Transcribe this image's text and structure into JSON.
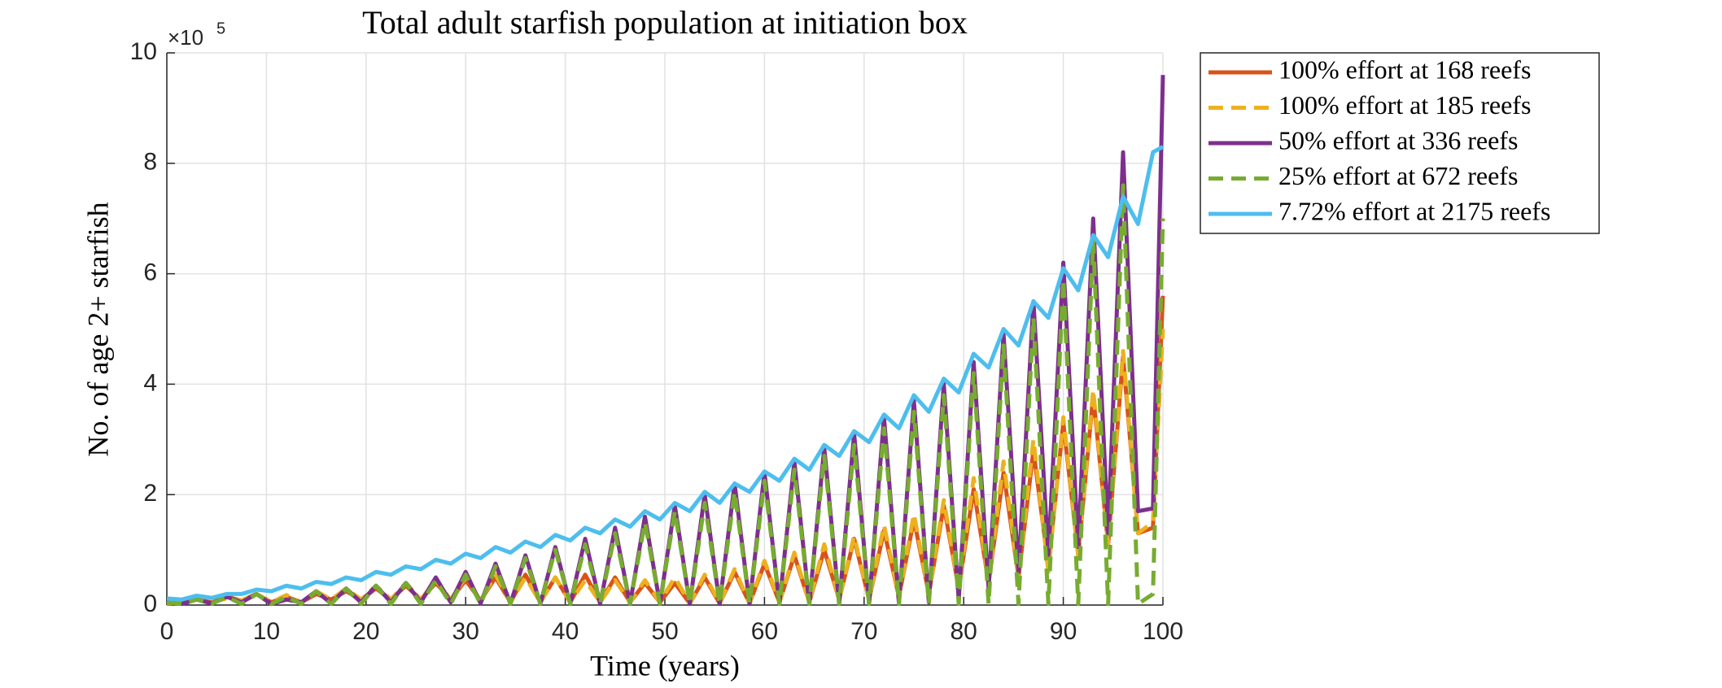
{
  "chart_data": {
    "type": "line",
    "title": "Total adult starfish population at initiation box",
    "x_label": "Time (years)",
    "y_label": "No. of age 2+ starfish",
    "y_scale_base": "×10",
    "y_scale_exponent": "5",
    "x": [
      0,
      1.5,
      3,
      4.5,
      6,
      7.5,
      9,
      10.5,
      12,
      13.5,
      15,
      16.5,
      18,
      19.5,
      21,
      22.5,
      24,
      25.5,
      27,
      28.5,
      30,
      31.5,
      33,
      34.5,
      36,
      37.5,
      39,
      40.5,
      42,
      43.5,
      45,
      46.5,
      48,
      49.5,
      51,
      52.5,
      54,
      55.5,
      57,
      58.5,
      60,
      61.5,
      63,
      64.5,
      66,
      67.5,
      69,
      70.5,
      72,
      73.5,
      75,
      76.5,
      78,
      79.5,
      81,
      82.5,
      84,
      85.5,
      87,
      88.5,
      90,
      91.5,
      93,
      94.5,
      96,
      97.5,
      99,
      100
    ],
    "series": [
      {
        "name": "100% effort at 168 reefs",
        "color": "#D95319",
        "line_style": "solid",
        "values": [
          0.02,
          0.05,
          0.1,
          0.05,
          0.15,
          0.08,
          0.2,
          0.05,
          0.15,
          0.05,
          0.2,
          0.1,
          0.25,
          0.1,
          0.3,
          0.1,
          0.35,
          0.1,
          0.4,
          0.1,
          0.45,
          0.08,
          0.5,
          0.05,
          0.55,
          0.05,
          0.5,
          0.05,
          0.55,
          0.05,
          0.5,
          0.05,
          0.4,
          0.05,
          0.4,
          0.03,
          0.5,
          0.03,
          0.6,
          0.03,
          0.75,
          0.05,
          0.9,
          0.05,
          1.0,
          0.1,
          1.2,
          0.1,
          1.35,
          0.15,
          1.55,
          0.2,
          1.8,
          0.3,
          2.1,
          0.4,
          2.4,
          0.5,
          2.8,
          0.7,
          3.3,
          0.9,
          3.8,
          1.1,
          4.5,
          1.3,
          1.4,
          5.6
        ]
      },
      {
        "name": "100% effort at 185 reefs",
        "color": "#EDB120",
        "line_style": "dashed",
        "values": [
          0.03,
          0.05,
          0.1,
          0.05,
          0.12,
          0.08,
          0.2,
          0.05,
          0.18,
          0.05,
          0.25,
          0.1,
          0.3,
          0.1,
          0.35,
          0.1,
          0.4,
          0.1,
          0.45,
          0.1,
          0.5,
          0.08,
          0.55,
          0.05,
          0.5,
          0.05,
          0.5,
          0.05,
          0.45,
          0.05,
          0.45,
          0.05,
          0.45,
          0.05,
          0.5,
          0.03,
          0.55,
          0.03,
          0.65,
          0.03,
          0.8,
          0.05,
          0.95,
          0.05,
          1.1,
          0.1,
          1.25,
          0.1,
          1.45,
          0.15,
          1.65,
          0.2,
          1.9,
          0.3,
          2.3,
          0.4,
          2.6,
          0.5,
          3.0,
          0.6,
          3.4,
          0.9,
          3.9,
          1.1,
          4.6,
          1.3,
          1.5,
          5.0
        ]
      },
      {
        "name": "50% effort at 336 reefs",
        "color": "#7E2F8E",
        "line_style": "solid",
        "values": [
          0.05,
          0.02,
          0.1,
          0.03,
          0.15,
          0.05,
          0.2,
          0.02,
          0.1,
          0.05,
          0.25,
          0.03,
          0.3,
          0.05,
          0.35,
          0.05,
          0.4,
          0.05,
          0.5,
          0.05,
          0.6,
          0.03,
          0.75,
          0.02,
          0.9,
          0.02,
          1.05,
          0.02,
          1.2,
          0.02,
          1.4,
          0.02,
          1.6,
          0.02,
          1.8,
          0.02,
          2.0,
          0.02,
          2.2,
          0.02,
          2.4,
          0.02,
          2.6,
          0.02,
          2.85,
          0.02,
          3.1,
          0.02,
          3.4,
          0.03,
          3.7,
          0.05,
          4.0,
          0.1,
          4.4,
          0.3,
          4.9,
          0.6,
          5.5,
          0.9,
          6.2,
          1.05,
          7.0,
          1.3,
          8.2,
          1.7,
          1.75,
          9.6
        ]
      },
      {
        "name": "25% effort at 672 reefs",
        "color": "#77AC30",
        "line_style": "dashed",
        "values": [
          0.05,
          0.02,
          0.1,
          0.02,
          0.15,
          0.02,
          0.2,
          0.02,
          0.15,
          0.02,
          0.25,
          0.02,
          0.3,
          0.02,
          0.35,
          0.02,
          0.4,
          0.02,
          0.45,
          0.02,
          0.55,
          0.02,
          0.7,
          0.02,
          0.85,
          0.02,
          1.0,
          0.02,
          1.1,
          0.02,
          1.3,
          0.02,
          1.5,
          0.02,
          1.7,
          0.02,
          1.85,
          0.02,
          2.05,
          0.02,
          2.25,
          0.02,
          2.45,
          0.02,
          2.7,
          0.02,
          2.9,
          0.02,
          3.2,
          0.02,
          3.5,
          0.02,
          3.8,
          0.02,
          4.2,
          0.02,
          4.7,
          0.02,
          5.2,
          0.02,
          5.9,
          0.02,
          6.6,
          0.02,
          7.6,
          0.02,
          0.2,
          7.0
        ]
      },
      {
        "name": "7.72% effort at 2175 reefs",
        "color": "#4DBEEE",
        "line_style": "solid",
        "values": [
          0.12,
          0.1,
          0.17,
          0.13,
          0.2,
          0.2,
          0.28,
          0.25,
          0.35,
          0.3,
          0.42,
          0.38,
          0.5,
          0.45,
          0.6,
          0.55,
          0.7,
          0.65,
          0.82,
          0.75,
          0.93,
          0.85,
          1.05,
          0.95,
          1.15,
          1.05,
          1.27,
          1.17,
          1.4,
          1.3,
          1.55,
          1.42,
          1.7,
          1.55,
          1.85,
          1.7,
          2.05,
          1.85,
          2.2,
          2.05,
          2.42,
          2.25,
          2.65,
          2.45,
          2.9,
          2.7,
          3.15,
          2.95,
          3.45,
          3.2,
          3.8,
          3.5,
          4.1,
          3.85,
          4.55,
          4.3,
          5.0,
          4.7,
          5.5,
          5.2,
          6.1,
          5.7,
          6.7,
          6.3,
          7.4,
          6.9,
          8.2,
          8.3
        ]
      }
    ],
    "xlim": [
      0,
      100
    ],
    "xticks": [
      0,
      10,
      20,
      30,
      40,
      50,
      60,
      70,
      80,
      90,
      100
    ],
    "ylim": [
      0,
      10
    ],
    "yticks": [
      0,
      2,
      4,
      6,
      8,
      10
    ],
    "grid": true,
    "legend_position": "outside-right"
  }
}
